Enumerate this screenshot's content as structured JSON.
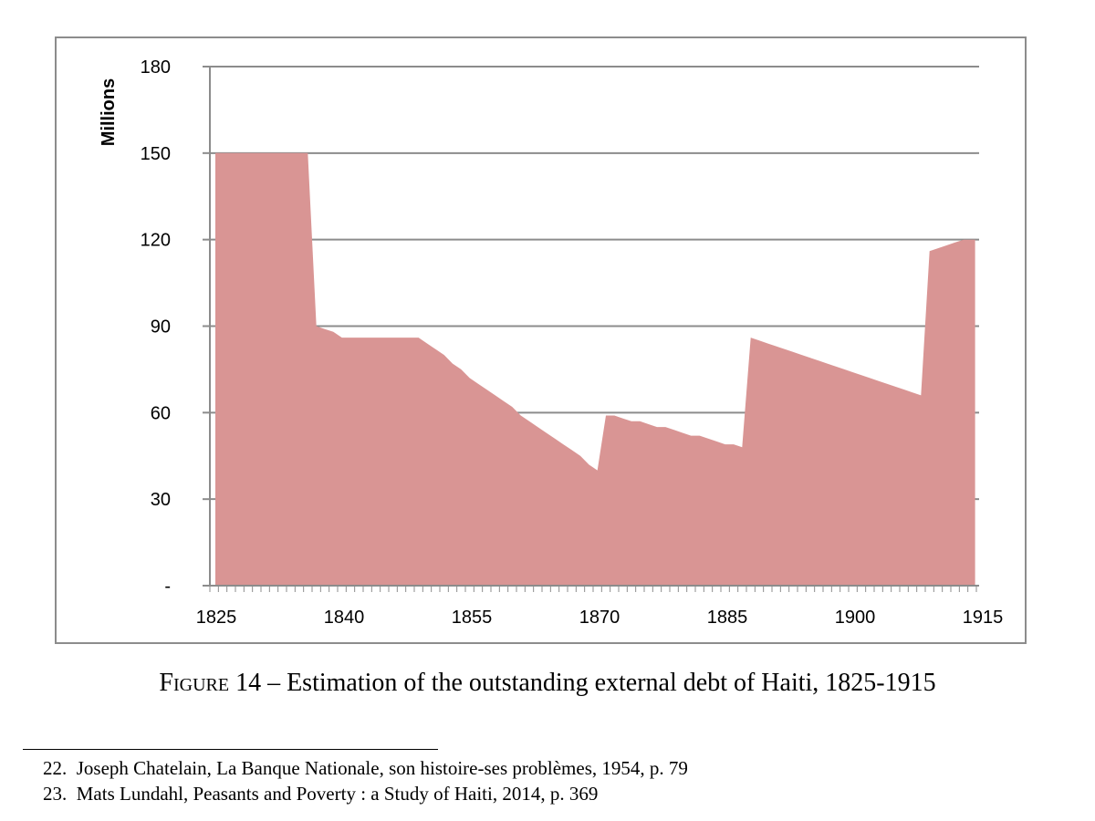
{
  "chart_data": {
    "type": "area",
    "title": "",
    "xlabel": "",
    "ylabel": "Millions",
    "xlim": [
      1825,
      1915
    ],
    "ylim": [
      0,
      180
    ],
    "x_ticks": [
      1825,
      1840,
      1855,
      1870,
      1885,
      1900,
      1915
    ],
    "y_ticks": [
      {
        "value": 0,
        "label": "-"
      },
      {
        "value": 30,
        "label": "30"
      },
      {
        "value": 60,
        "label": "60"
      },
      {
        "value": 90,
        "label": "90"
      },
      {
        "value": 120,
        "label": "120"
      },
      {
        "value": 150,
        "label": "150"
      },
      {
        "value": 180,
        "label": "180"
      }
    ],
    "grid": "horizontal",
    "fill_color": "#d99594",
    "series": [
      {
        "x": [
          1825,
          1826,
          1827,
          1828,
          1829,
          1830,
          1831,
          1832,
          1833,
          1834,
          1835,
          1836,
          1837,
          1838,
          1839,
          1840,
          1841,
          1842,
          1843,
          1844,
          1845,
          1846,
          1847,
          1848,
          1849,
          1850,
          1851,
          1852,
          1853,
          1854,
          1855,
          1856,
          1857,
          1858,
          1859,
          1860,
          1861,
          1862,
          1863,
          1864,
          1865,
          1866,
          1867,
          1868,
          1869,
          1870,
          1871,
          1872,
          1873,
          1874,
          1875,
          1876,
          1877,
          1878,
          1879,
          1880,
          1881,
          1882,
          1883,
          1884,
          1885,
          1886,
          1887,
          1888,
          1889,
          1890,
          1891,
          1892,
          1893,
          1894,
          1895,
          1896,
          1897,
          1898,
          1899,
          1900,
          1901,
          1902,
          1903,
          1904,
          1905,
          1906,
          1907,
          1908,
          1909,
          1910,
          1911,
          1912,
          1913,
          1914
        ],
        "y": [
          150,
          150,
          150,
          150,
          150,
          150,
          150,
          150,
          150,
          150,
          150,
          150,
          90,
          89,
          88,
          86,
          86,
          86,
          86,
          86,
          86,
          86,
          86,
          86,
          86,
          84,
          82,
          80,
          77,
          75,
          72,
          70,
          68,
          66,
          64,
          62,
          59,
          57,
          55,
          53,
          51,
          49,
          47,
          45,
          42,
          40,
          59,
          59,
          58,
          57,
          57,
          56,
          55,
          55,
          54,
          53,
          52,
          52,
          51,
          50,
          49,
          49,
          48,
          86,
          85,
          84,
          83,
          82,
          81,
          80,
          79,
          78,
          77,
          76,
          75,
          74,
          73,
          72,
          71,
          70,
          69,
          68,
          67,
          66,
          116,
          117,
          118,
          119,
          120,
          120
        ]
      }
    ]
  },
  "caption": {
    "figure_word": "Figure 14",
    "text": " – Estimation of the outstanding external debt of Haiti, 1825-1915"
  },
  "footnotes": [
    {
      "number": "22.",
      "text": "Joseph Chatelain, La Banque Nationale, son histoire-ses problèmes, 1954, p. 79"
    },
    {
      "number": "23.",
      "text": "Mats Lundahl, Peasants and Poverty : a Study of Haiti, 2014, p. 369"
    }
  ]
}
